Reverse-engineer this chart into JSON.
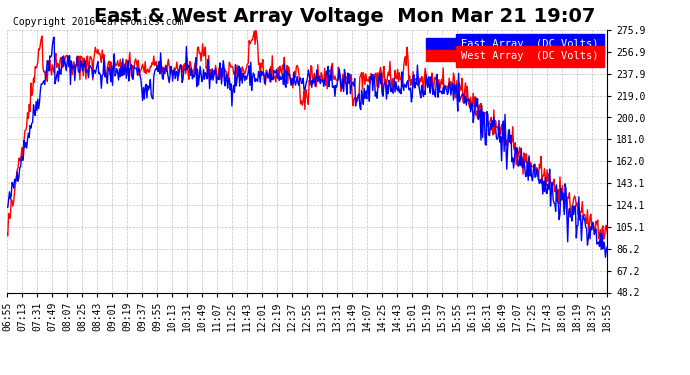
{
  "title": "East & West Array Voltage  Mon Mar 21 19:07",
  "copyright": "Copyright 2016 Cartronics.com",
  "legend_east": "East Array  (DC Volts)",
  "legend_west": "West Array  (DC Volts)",
  "east_color": "#0000ff",
  "west_color": "#ff0000",
  "background_color": "#ffffff",
  "plot_bg_color": "#ffffff",
  "grid_color": "#aaaaaa",
  "yticks": [
    48.2,
    67.2,
    86.2,
    105.1,
    124.1,
    143.1,
    162.0,
    181.0,
    200.0,
    219.0,
    237.9,
    256.9,
    275.9
  ],
  "ymin": 48.2,
  "ymax": 275.9,
  "xtick_labels": [
    "06:55",
    "07:13",
    "07:31",
    "07:49",
    "08:07",
    "08:25",
    "08:43",
    "09:01",
    "09:19",
    "09:37",
    "09:55",
    "10:13",
    "10:31",
    "10:49",
    "11:07",
    "11:25",
    "11:43",
    "12:01",
    "12:19",
    "12:37",
    "12:55",
    "13:13",
    "13:31",
    "13:49",
    "14:07",
    "14:25",
    "14:43",
    "15:01",
    "15:19",
    "15:37",
    "15:55",
    "16:13",
    "16:31",
    "16:49",
    "17:07",
    "17:25",
    "17:43",
    "18:01",
    "18:19",
    "18:37",
    "18:55"
  ],
  "title_fontsize": 14,
  "axis_fontsize": 7,
  "copyright_fontsize": 7,
  "legend_fontsize": 7.5,
  "line_width": 1.0
}
